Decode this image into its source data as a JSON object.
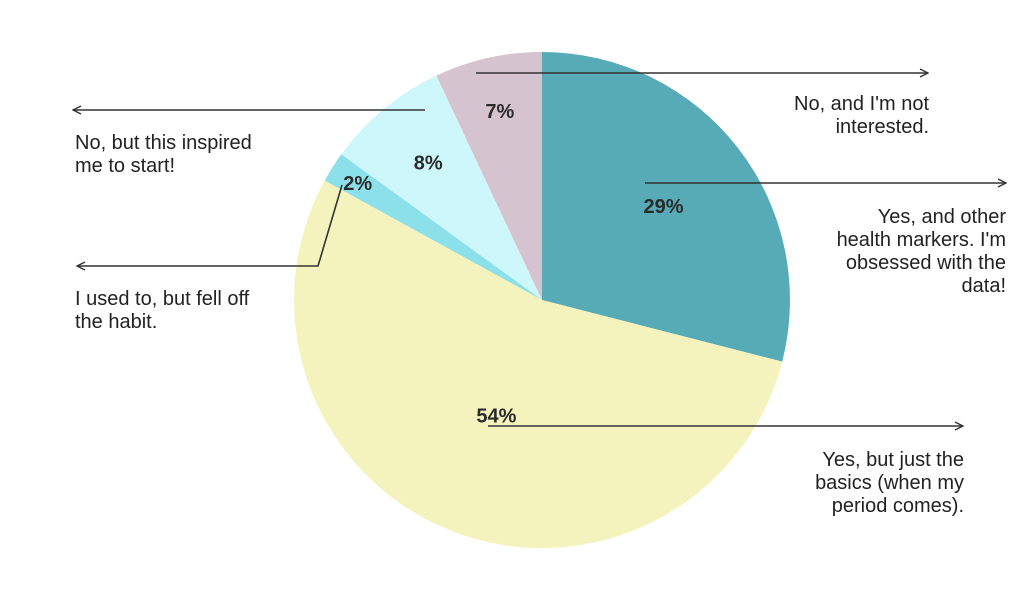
{
  "chart_data": {
    "type": "pie",
    "title": "",
    "start_angle_deg": 0,
    "direction": "clockwise",
    "slices": [
      {
        "value": 29,
        "value_label": "29%",
        "label_lines": [
          "Yes, and other",
          "health markers. I'm",
          "obsessed with the",
          "data!"
        ],
        "color": "#56abb6"
      },
      {
        "value": 54,
        "value_label": "54%",
        "label_lines": [
          "Yes, but just the",
          "basics (when my",
          "period comes)."
        ],
        "color": "#f5f3bd"
      },
      {
        "value": 2,
        "value_label": "2%",
        "label_lines": [
          "I used to, but fell off",
          "the habit."
        ],
        "color": "#8ce0ea"
      },
      {
        "value": 8,
        "value_label": "8%",
        "label_lines": [
          "No, but this inspired",
          "me to start!"
        ],
        "color": "#cef7fb"
      },
      {
        "value": 7,
        "value_label": "7%",
        "label_lines": [
          "No, and I'm not",
          "interested."
        ],
        "color": "#d5c3cf"
      }
    ],
    "legend": "none",
    "label_style": "callout-arrows"
  }
}
